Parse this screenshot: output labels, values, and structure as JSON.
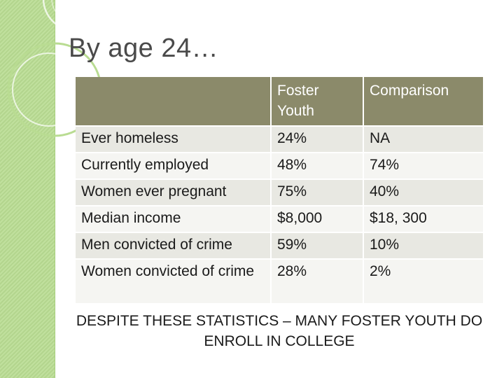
{
  "slide": {
    "title": "By age 24…",
    "table": {
      "headers": [
        "",
        "Foster Youth",
        "Comparison"
      ],
      "rows": [
        [
          "Ever homeless",
          "24%",
          "NA"
        ],
        [
          "Currently employed",
          "48%",
          "74%"
        ],
        [
          "Women ever pregnant",
          "75%",
          "40%"
        ],
        [
          "Median income",
          "$8,000",
          "$18, 300"
        ],
        [
          "Men convicted of crime",
          "59%",
          "10%"
        ],
        [
          "Women convicted of crime",
          "28%",
          "2%"
        ]
      ]
    },
    "note": "DESPITE THESE STATISTICS – MANY FOSTER YOUTH DO ENROLL IN COLLEGE"
  },
  "colors": {
    "side_band": "#b9dc92",
    "header_fill": "#8b8a6a",
    "row_odd": "#e8e8e2",
    "row_even": "#f5f5f2"
  }
}
